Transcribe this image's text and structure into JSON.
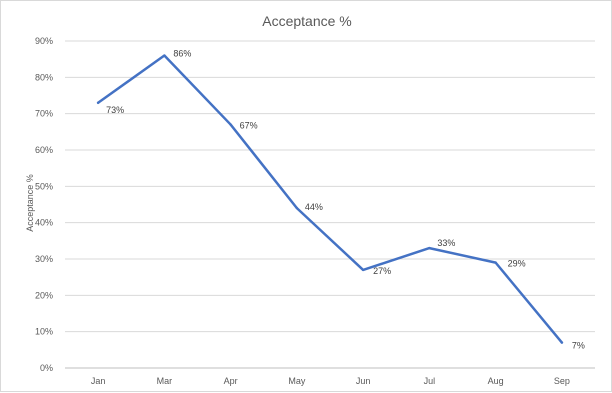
{
  "chart_data": {
    "type": "line",
    "title": "Acceptance %",
    "xlabel": "",
    "ylabel": "Acceptance %",
    "categories": [
      "Jan",
      "Mar",
      "Apr",
      "May",
      "Jun",
      "Jul",
      "Aug",
      "Sep"
    ],
    "series": [
      {
        "values": [
          73,
          86,
          67,
          44,
          27,
          33,
          29,
          7
        ],
        "data_labels": [
          "73%",
          "86%",
          "67%",
          "44%",
          "27%",
          "33%",
          "29%",
          "7%"
        ],
        "color": "#4472c4"
      }
    ],
    "ylim": [
      0,
      90
    ],
    "yticks": [
      "0%",
      "10%",
      "20%",
      "30%",
      "40%",
      "50%",
      "60%",
      "70%",
      "80%",
      "90%"
    ],
    "grid": true,
    "legend": "none"
  }
}
